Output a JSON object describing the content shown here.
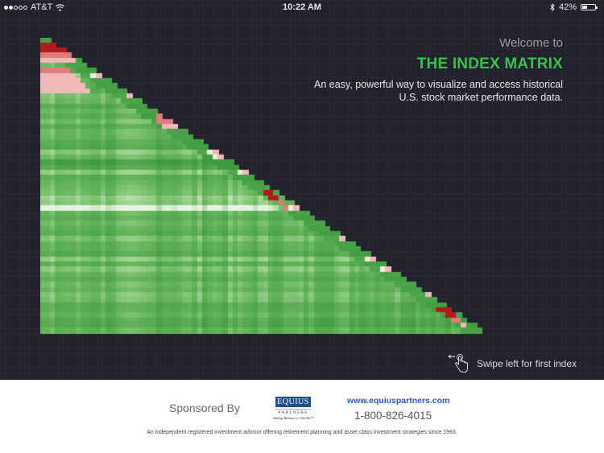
{
  "status_bar": {
    "signal_dots_filled": 2,
    "signal_dots_total": 5,
    "carrier": "AT&T",
    "wifi_icon": "wifi-icon",
    "time": "10:22 AM",
    "bluetooth_icon": "bluetooth-icon",
    "battery_percent": "42%",
    "battery_level": 0.42
  },
  "welcome": {
    "greeting": "Welcome to",
    "title": "THE INDEX MATRIX",
    "description_line1": "An easy, powerful way to visualize and access historical",
    "description_line2": "U.S. stock market performance data.",
    "title_color": "#3cbf4d"
  },
  "matrix": {
    "rows": 58,
    "cell_size": 6.33,
    "colors": {
      "dark_green": "#3f9a3d",
      "mid_green": "#66b55c",
      "light_green": "#a6d89a",
      "pale": "#e6f3df",
      "pink": "#f0b8b8",
      "light_red": "#e07b7b",
      "dark_red": "#b01c1c"
    },
    "red_hotspots": [
      {
        "row": 1,
        "col": 0,
        "size": 4,
        "intensity": 1.0
      },
      {
        "row": 6,
        "col": 0,
        "size": 6,
        "intensity": 0.5
      },
      {
        "row": 15,
        "col": 23,
        "size": 3,
        "intensity": 0.7
      },
      {
        "row": 30,
        "col": 41,
        "size": 5,
        "intensity": 0.9
      },
      {
        "row": 53,
        "col": 77,
        "size": 4,
        "intensity": 0.9
      }
    ]
  },
  "swipe_hint": {
    "icon": "swipe-hand-icon",
    "label": "Swipe left for first index"
  },
  "footer": {
    "sponsored_by": "Sponsored By",
    "logo_name": "EQUIUS",
    "logo_sub": "PARTNERS",
    "logo_tagline": "Adding Balance to Wealth™",
    "website": "www.equiuspartners.com",
    "phone": "1-800-826-4015",
    "disclaimer": "An independent registered investment advisor offering retirement planning and asset class investment strategies since 1993."
  }
}
